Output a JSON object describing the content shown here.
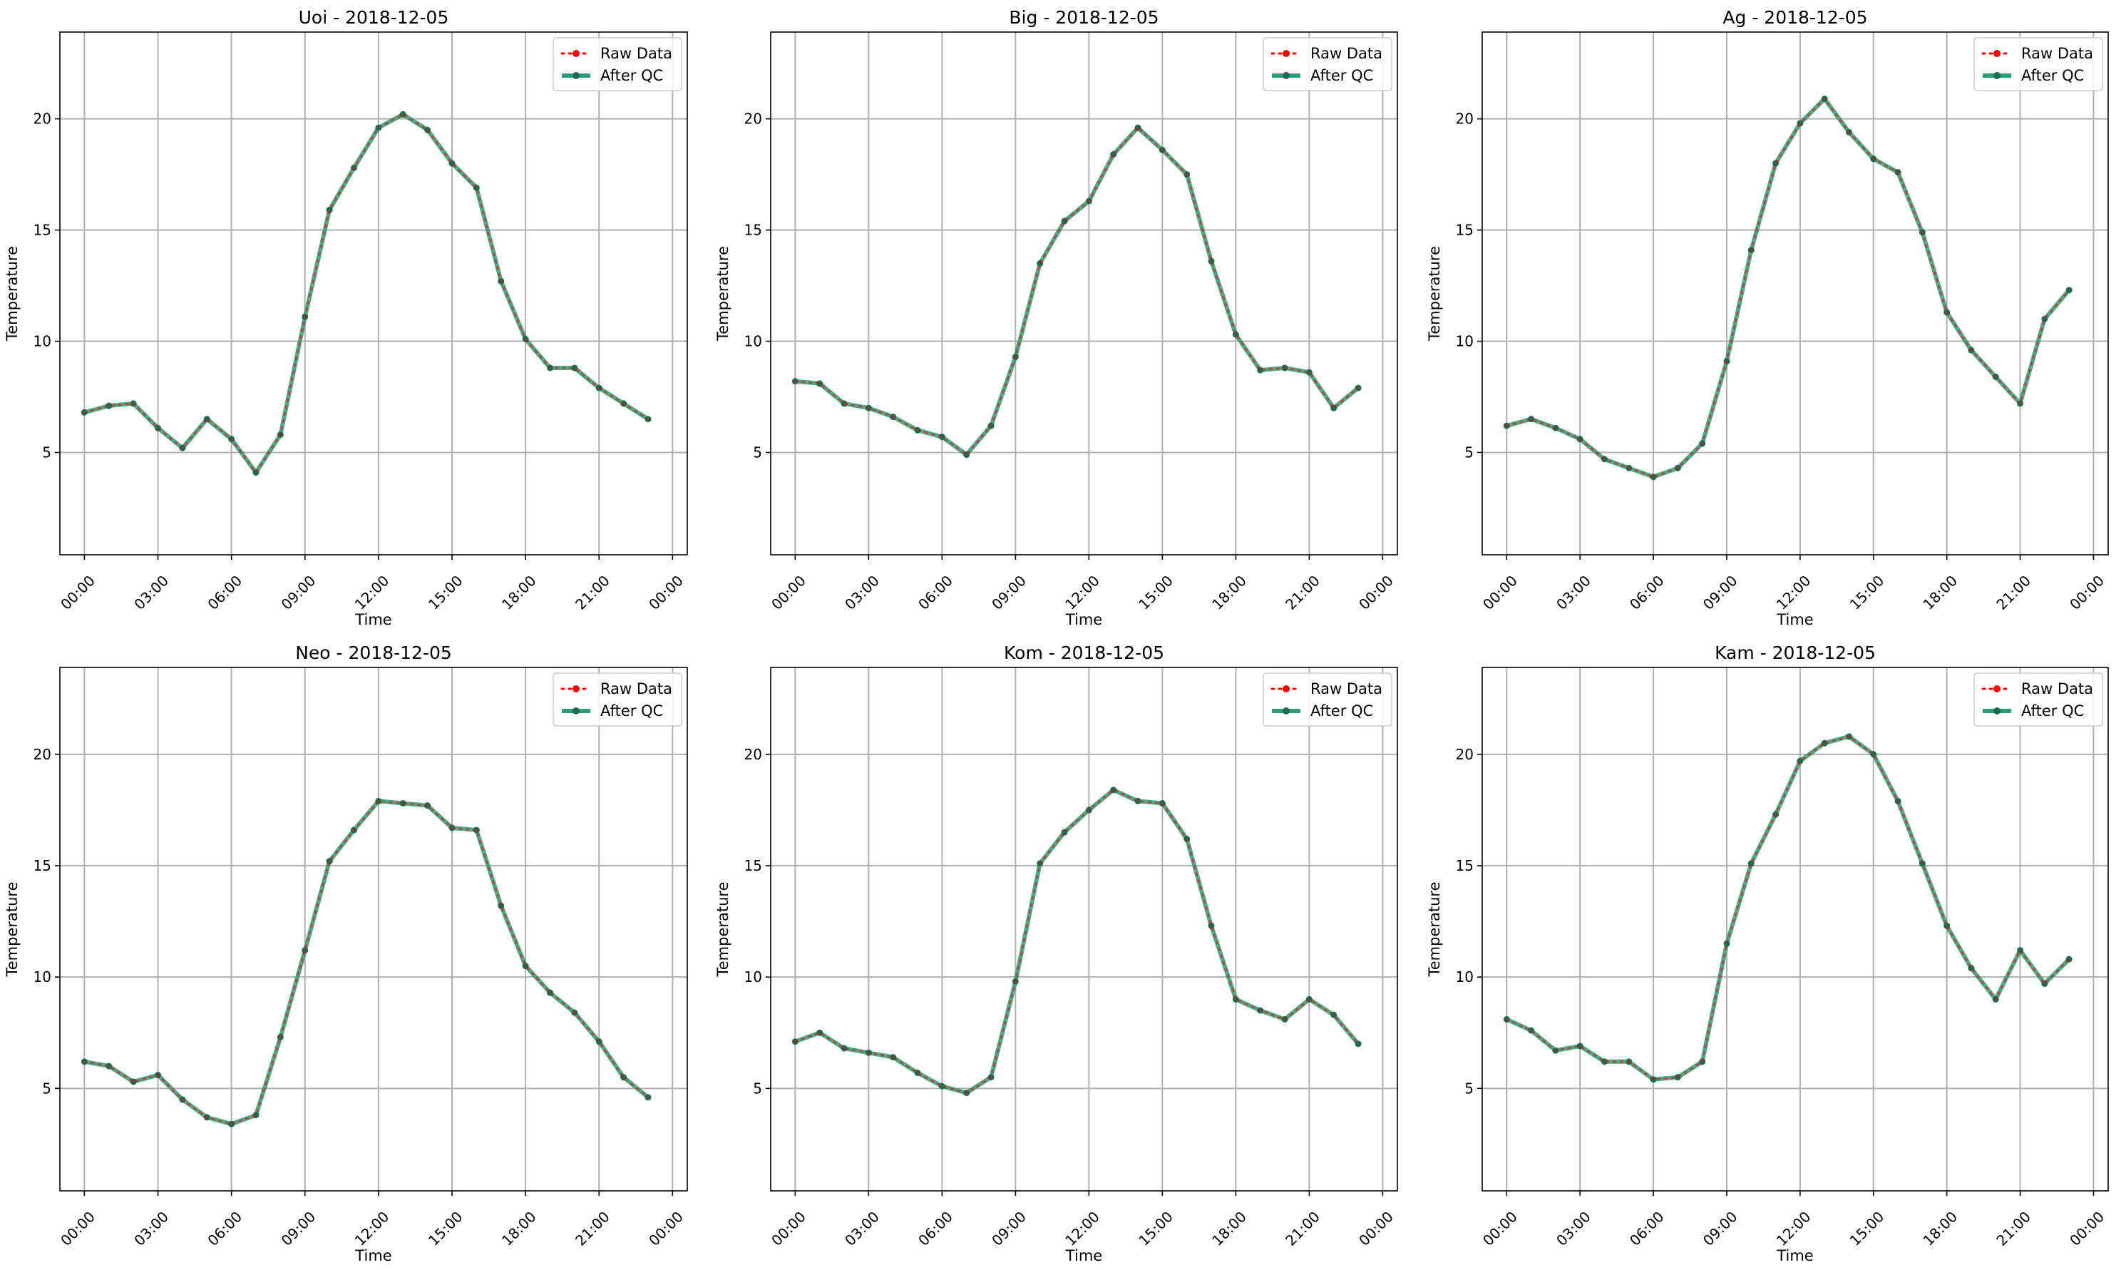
{
  "colors": {
    "raw": "#ff0000",
    "qc": "#2a9d75",
    "qc_marker": "#1f6b52",
    "grid": "#b0b0b0"
  },
  "legend": {
    "raw": "Raw Data",
    "qc": "After QC",
    "placement": "top-right"
  },
  "chart_data": [
    {
      "type": "line",
      "title": "Uoi - 2018-12-05",
      "xlabel": "Time",
      "ylabel": "Temperature",
      "ylim": [
        0.4,
        23.9
      ],
      "yticks": [
        5,
        10,
        15,
        20
      ],
      "xticks": [
        "00:00",
        "03:00",
        "06:00",
        "09:00",
        "12:00",
        "15:00",
        "18:00",
        "21:00",
        "00:00"
      ],
      "grid": true,
      "x_hours": [
        0,
        1,
        2,
        3,
        4,
        5,
        6,
        7,
        8,
        9,
        10,
        11,
        12,
        13,
        14,
        15,
        16,
        17,
        18,
        19,
        20,
        21,
        22,
        23
      ],
      "series": [
        {
          "name": "Raw Data",
          "values": [
            6.8,
            7.1,
            7.2,
            6.1,
            5.2,
            6.5,
            5.6,
            4.1,
            5.8,
            11.1,
            15.9,
            17.8,
            19.6,
            20.2,
            19.5,
            18.0,
            16.9,
            12.7,
            10.1,
            8.8,
            8.8,
            7.9,
            7.2,
            6.5
          ]
        },
        {
          "name": "After QC",
          "values": [
            6.8,
            7.1,
            7.2,
            6.1,
            5.2,
            6.5,
            5.6,
            4.1,
            5.8,
            11.1,
            15.9,
            17.8,
            19.6,
            20.2,
            19.5,
            18.0,
            16.9,
            12.7,
            10.1,
            8.8,
            8.8,
            7.9,
            7.2,
            6.5
          ]
        }
      ]
    },
    {
      "type": "line",
      "title": "Big - 2018-12-05",
      "xlabel": "Time",
      "ylabel": "Temperature",
      "ylim": [
        0.4,
        23.9
      ],
      "yticks": [
        5,
        10,
        15,
        20
      ],
      "xticks": [
        "00:00",
        "03:00",
        "06:00",
        "09:00",
        "12:00",
        "15:00",
        "18:00",
        "21:00",
        "00:00"
      ],
      "grid": true,
      "x_hours": [
        0,
        1,
        2,
        3,
        4,
        5,
        6,
        7,
        8,
        9,
        10,
        11,
        12,
        13,
        14,
        15,
        16,
        17,
        18,
        19,
        20,
        21,
        22,
        23
      ],
      "series": [
        {
          "name": "Raw Data",
          "values": [
            8.2,
            8.1,
            7.2,
            7.0,
            6.6,
            6.0,
            5.7,
            4.9,
            6.2,
            9.3,
            13.5,
            15.4,
            16.3,
            18.4,
            19.6,
            18.6,
            17.5,
            13.6,
            10.3,
            8.7,
            8.8,
            8.6,
            7.0,
            7.9
          ]
        },
        {
          "name": "After QC",
          "values": [
            8.2,
            8.1,
            7.2,
            7.0,
            6.6,
            6.0,
            5.7,
            4.9,
            6.2,
            9.3,
            13.5,
            15.4,
            16.3,
            18.4,
            19.6,
            18.6,
            17.5,
            13.6,
            10.3,
            8.7,
            8.8,
            8.6,
            7.0,
            7.9
          ]
        }
      ]
    },
    {
      "type": "line",
      "title": "Ag - 2018-12-05",
      "xlabel": "Time",
      "ylabel": "Temperature",
      "ylim": [
        0.4,
        23.9
      ],
      "yticks": [
        5,
        10,
        15,
        20
      ],
      "xticks": [
        "00:00",
        "03:00",
        "06:00",
        "09:00",
        "12:00",
        "15:00",
        "18:00",
        "21:00",
        "00:00"
      ],
      "grid": true,
      "x_hours": [
        0,
        1,
        2,
        3,
        4,
        5,
        6,
        7,
        8,
        9,
        10,
        11,
        12,
        13,
        14,
        15,
        16,
        17,
        18,
        19,
        20,
        21,
        22,
        23
      ],
      "series": [
        {
          "name": "Raw Data",
          "values": [
            6.2,
            6.5,
            6.1,
            5.6,
            4.7,
            4.3,
            3.9,
            4.3,
            5.4,
            9.1,
            14.1,
            18.0,
            19.8,
            20.9,
            19.4,
            18.2,
            17.6,
            14.9,
            11.3,
            9.6,
            8.4,
            7.2,
            11.0,
            12.3
          ]
        },
        {
          "name": "After QC",
          "values": [
            6.2,
            6.5,
            6.1,
            5.6,
            4.7,
            4.3,
            3.9,
            4.3,
            5.4,
            9.1,
            14.1,
            18.0,
            19.8,
            20.9,
            19.4,
            18.2,
            17.6,
            14.9,
            11.3,
            9.6,
            8.4,
            7.2,
            11.0,
            12.3
          ]
        }
      ]
    },
    {
      "type": "line",
      "title": "Neo - 2018-12-05",
      "xlabel": "Time",
      "ylabel": "Temperature",
      "ylim": [
        0.4,
        23.9
      ],
      "yticks": [
        5,
        10,
        15,
        20
      ],
      "xticks": [
        "00:00",
        "03:00",
        "06:00",
        "09:00",
        "12:00",
        "15:00",
        "18:00",
        "21:00",
        "00:00"
      ],
      "grid": true,
      "x_hours": [
        0,
        1,
        2,
        3,
        4,
        5,
        6,
        7,
        8,
        9,
        10,
        11,
        12,
        13,
        14,
        15,
        16,
        17,
        18,
        19,
        20,
        21,
        22,
        23
      ],
      "series": [
        {
          "name": "Raw Data",
          "values": [
            6.2,
            6.0,
            5.3,
            5.6,
            4.5,
            3.7,
            3.4,
            3.8,
            7.3,
            11.2,
            15.2,
            16.6,
            17.9,
            17.8,
            17.7,
            16.7,
            16.6,
            13.2,
            10.5,
            9.3,
            8.4,
            7.1,
            5.5,
            4.6
          ]
        },
        {
          "name": "After QC",
          "values": [
            6.2,
            6.0,
            5.3,
            5.6,
            4.5,
            3.7,
            3.4,
            3.8,
            7.3,
            11.2,
            15.2,
            16.6,
            17.9,
            17.8,
            17.7,
            16.7,
            16.6,
            13.2,
            10.5,
            9.3,
            8.4,
            7.1,
            5.5,
            4.6
          ]
        }
      ]
    },
    {
      "type": "line",
      "title": "Kom - 2018-12-05",
      "xlabel": "Time",
      "ylabel": "Temperature",
      "ylim": [
        0.4,
        23.9
      ],
      "yticks": [
        5,
        10,
        15,
        20
      ],
      "xticks": [
        "00:00",
        "03:00",
        "06:00",
        "09:00",
        "12:00",
        "15:00",
        "18:00",
        "21:00",
        "00:00"
      ],
      "grid": true,
      "x_hours": [
        0,
        1,
        2,
        3,
        4,
        5,
        6,
        7,
        8,
        9,
        10,
        11,
        12,
        13,
        14,
        15,
        16,
        17,
        18,
        19,
        20,
        21,
        22,
        23
      ],
      "series": [
        {
          "name": "Raw Data",
          "values": [
            7.1,
            7.5,
            6.8,
            6.6,
            6.4,
            5.7,
            5.1,
            4.8,
            5.5,
            9.8,
            15.1,
            16.5,
            17.5,
            18.4,
            17.9,
            17.8,
            16.2,
            12.3,
            9.0,
            8.5,
            8.1,
            9.0,
            8.3,
            7.0
          ]
        },
        {
          "name": "After QC",
          "values": [
            7.1,
            7.5,
            6.8,
            6.6,
            6.4,
            5.7,
            5.1,
            4.8,
            5.5,
            9.8,
            15.1,
            16.5,
            17.5,
            18.4,
            17.9,
            17.8,
            16.2,
            12.3,
            9.0,
            8.5,
            8.1,
            9.0,
            8.3,
            7.0
          ]
        }
      ]
    },
    {
      "type": "line",
      "title": "Kam - 2018-12-05",
      "xlabel": "Time",
      "ylabel": "Temperature",
      "ylim": [
        0.4,
        23.9
      ],
      "yticks": [
        5,
        10,
        15,
        20
      ],
      "xticks": [
        "00:00",
        "03:00",
        "06:00",
        "09:00",
        "12:00",
        "15:00",
        "18:00",
        "21:00",
        "00:00"
      ],
      "grid": true,
      "x_hours": [
        0,
        1,
        2,
        3,
        4,
        5,
        6,
        7,
        8,
        9,
        10,
        11,
        12,
        13,
        14,
        15,
        16,
        17,
        18,
        19,
        20,
        21,
        22,
        23
      ],
      "series": [
        {
          "name": "Raw Data",
          "values": [
            8.1,
            7.6,
            6.7,
            6.9,
            6.2,
            6.2,
            5.4,
            5.5,
            6.2,
            11.5,
            15.1,
            17.3,
            19.7,
            20.5,
            20.8,
            20.0,
            17.9,
            15.1,
            12.3,
            10.4,
            9.0,
            11.2,
            9.7,
            10.8
          ]
        },
        {
          "name": "After QC",
          "values": [
            8.1,
            7.6,
            6.7,
            6.9,
            6.2,
            6.2,
            5.4,
            5.5,
            6.2,
            11.5,
            15.1,
            17.3,
            19.7,
            20.5,
            20.8,
            20.0,
            17.9,
            15.1,
            12.3,
            10.4,
            9.0,
            11.2,
            9.7,
            10.8
          ]
        }
      ]
    }
  ]
}
